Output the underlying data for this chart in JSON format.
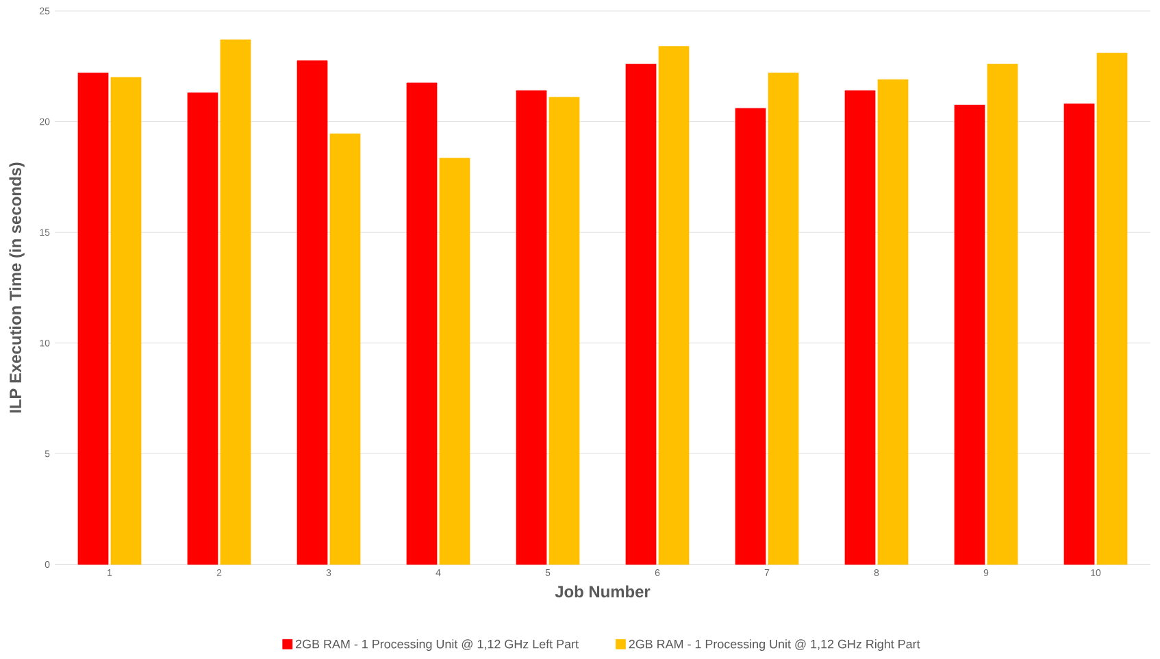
{
  "chart_data": {
    "type": "bar",
    "xlabel": "Job Number",
    "ylabel": "ILP Execution Time (in seconds)",
    "categories": [
      "1",
      "2",
      "3",
      "4",
      "5",
      "6",
      "7",
      "8",
      "9",
      "10"
    ],
    "series": [
      {
        "name": "2GB RAM - 1 Processing Unit @ 1,12 GHz Left Part",
        "color": "#ff0000",
        "values": [
          22.2,
          21.3,
          22.75,
          21.75,
          21.4,
          22.6,
          20.6,
          21.4,
          20.75,
          20.8
        ]
      },
      {
        "name": "2GB RAM - 1 Processing Unit @ 1,12 GHz Right Part",
        "color": "#ffc000",
        "values": [
          22.0,
          23.7,
          19.45,
          18.35,
          21.1,
          23.4,
          22.2,
          21.9,
          22.6,
          23.1
        ]
      }
    ],
    "ylim": [
      0,
      25
    ],
    "yticks": [
      0,
      5,
      10,
      15,
      20,
      25
    ],
    "grid": "y",
    "legend": "bottom"
  }
}
